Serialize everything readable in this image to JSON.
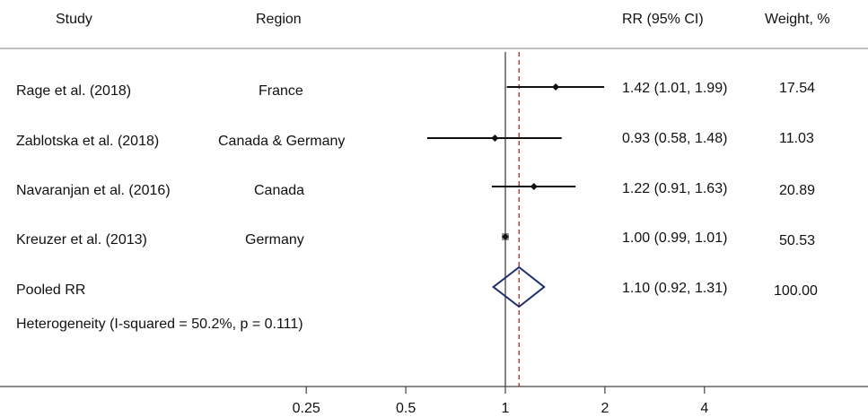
{
  "chart_data": {
    "type": "forest",
    "scale": "log",
    "columns": {
      "study": "Study",
      "region": "Region",
      "rr": "RR (95% CI)",
      "weight": "Weight, %"
    },
    "studies": [
      {
        "study": "Rage et al. (2018)",
        "region": "France",
        "rr": 1.42,
        "lower": 1.01,
        "upper": 1.99,
        "rr_text": "1.42 (1.01, 1.99)",
        "weight": "17.54"
      },
      {
        "study": "Zablotska et al. (2018)",
        "region": "Canada & Germany",
        "rr": 0.93,
        "lower": 0.58,
        "upper": 1.48,
        "rr_text": "0.93 (0.58, 1.48)",
        "weight": "11.03"
      },
      {
        "study": "Navaranjan et al. (2016)",
        "region": "Canada",
        "rr": 1.22,
        "lower": 0.91,
        "upper": 1.63,
        "rr_text": "1.22 (0.91, 1.63)",
        "weight": "20.89"
      },
      {
        "study": "Kreuzer et al. (2013)",
        "region": "Germany",
        "rr": 1.0,
        "lower": 0.99,
        "upper": 1.01,
        "rr_text": "1.00 (0.99, 1.01)",
        "weight": "50.53"
      }
    ],
    "pooled": {
      "label": "Pooled RR",
      "rr": 1.1,
      "lower": 0.92,
      "upper": 1.31,
      "rr_text": "1.10 (0.92, 1.31)",
      "weight": "100.00"
    },
    "heterogeneity": "Heterogeneity (I-squared = 50.2%, p = 0.111)",
    "null_value": 1,
    "x_ticks": [
      {
        "value": 0.25,
        "label": "0.25"
      },
      {
        "value": 0.5,
        "label": "0.5"
      },
      {
        "value": 1,
        "label": "1"
      },
      {
        "value": 2,
        "label": "2"
      },
      {
        "value": 4,
        "label": "4"
      }
    ],
    "colors": {
      "pooled_diamond": "#1f2d6e",
      "pooled_line": "#b22222",
      "axis": "#444444",
      "marker": "#111111",
      "weight_box": "#9a9a9a"
    }
  }
}
